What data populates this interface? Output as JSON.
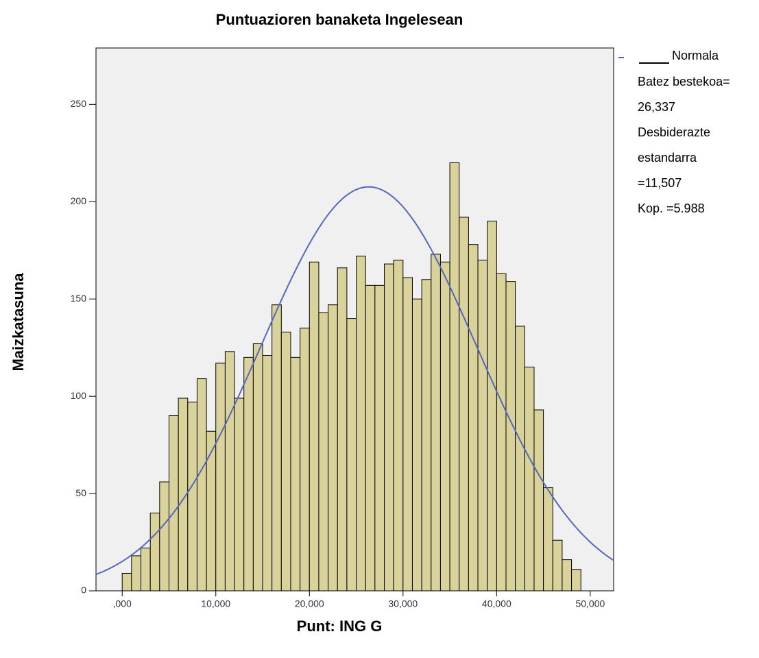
{
  "chart_data": {
    "type": "histogram",
    "title": "Puntuazioren banaketa Ingelesean",
    "xlabel": "Punt: ING  G",
    "ylabel": "Maizkatasuna",
    "bins": [
      0,
      1,
      2,
      3,
      4,
      5,
      6,
      7,
      8,
      9,
      10,
      11,
      12,
      13,
      14,
      15,
      16,
      17,
      18,
      19,
      20,
      21,
      22,
      23,
      24,
      25,
      26,
      27,
      28,
      29,
      30,
      31,
      32,
      33,
      34,
      35,
      36,
      37,
      38,
      39,
      40,
      41,
      42,
      43,
      44,
      45,
      46,
      47,
      48,
      49
    ],
    "values": [
      9,
      18,
      22,
      40,
      56,
      90,
      99,
      97,
      109,
      82,
      117,
      123,
      99,
      120,
      127,
      121,
      147,
      133,
      120,
      135,
      169,
      143,
      147,
      166,
      140,
      172,
      157,
      157,
      168,
      170,
      161,
      150,
      160,
      173,
      169,
      220,
      192,
      178,
      170,
      190,
      163,
      159,
      136,
      115,
      93,
      53,
      26,
      16,
      11
    ],
    "color": "#d9d29b",
    "xlim": [
      -2.8,
      52.5
    ],
    "ylim": [
      0,
      279
    ],
    "xticks": [
      {
        "value": 0,
        "label": ",000"
      },
      {
        "value": 10,
        "label": "10,000"
      },
      {
        "value": 20,
        "label": "20,000"
      },
      {
        "value": 30,
        "label": "30,000"
      },
      {
        "value": 40,
        "label": "40,000"
      },
      {
        "value": 50,
        "label": "50,000"
      }
    ],
    "yticks": [
      0,
      50,
      100,
      150,
      200,
      250
    ],
    "normal": {
      "name": "Normala",
      "mean": 26.337,
      "sd": 11.507,
      "n": 5988,
      "color": "#5566bb"
    },
    "legend_text": [
      "Batez bestekoa=",
      "26,337",
      "Desbiderazte",
      "estandarra",
      "=11,507",
      "Kop. =5.988"
    ]
  }
}
